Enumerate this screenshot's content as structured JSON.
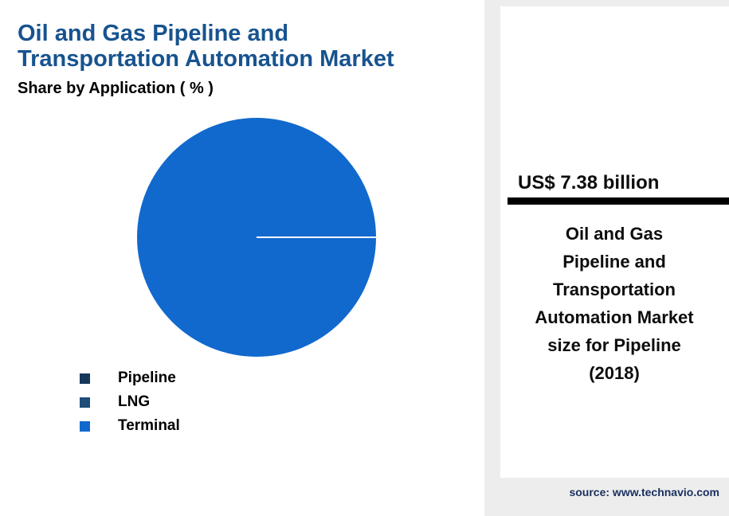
{
  "page": {
    "background_color": "#ededed",
    "panel_color": "#ffffff"
  },
  "chart": {
    "title_line1": "Oil and Gas Pipeline and",
    "title_line2": "Transportation Automation Market",
    "title_color": "#17538f",
    "subtitle": "Share by Application ( % )",
    "pie_color": "#1169cd"
  },
  "legend": {
    "items": [
      {
        "label": "Pipeline",
        "color": "#16365c"
      },
      {
        "label": "LNG",
        "color": "#1f4e79"
      },
      {
        "label": "Terminal",
        "color": "#1169cd"
      }
    ]
  },
  "callout": {
    "value": "US$ 7.38 billion",
    "description_lines": [
      "Oil and Gas",
      "Pipeline and",
      "Transportation",
      "Automation Market",
      "size for Pipeline",
      "(2018)"
    ]
  },
  "footer": {
    "source": "source: www.technavio.com",
    "color": "#1a2f5e"
  },
  "chart_data": {
    "type": "pie",
    "title": "Oil and Gas Pipeline and Transportation Automation Market",
    "subtitle": "Share by Application ( % )",
    "categories": [
      "Pipeline",
      "LNG",
      "Terminal"
    ],
    "values": [
      0.5,
      0.5,
      99
    ],
    "colors": [
      "#16365c",
      "#1f4e79",
      "#1169cd"
    ],
    "legend_position": "bottom-left",
    "annotations": [
      "US$ 7.38 billion — Oil and Gas Pipeline and Transportation Automation Market size for Pipeline (2018)"
    ]
  }
}
